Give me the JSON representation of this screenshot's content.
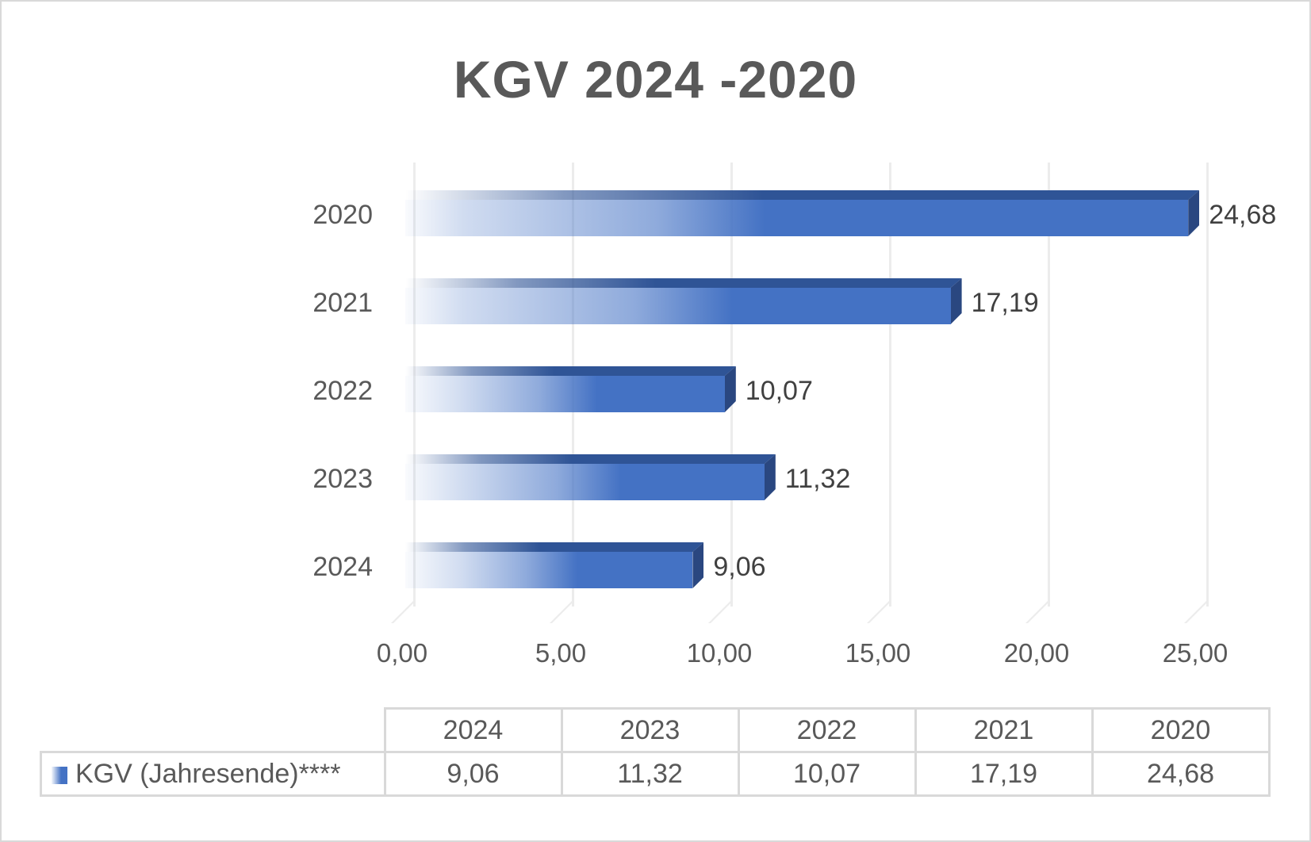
{
  "chart_data": {
    "type": "bar",
    "orientation": "horizontal",
    "style": "3d-gradient",
    "title": "KGV 2024 -2020",
    "categories": [
      "2020",
      "2021",
      "2022",
      "2023",
      "2024"
    ],
    "series": [
      {
        "name": "KGV (Jahresende)****",
        "values": [
          24.68,
          17.19,
          10.07,
          11.32,
          9.06
        ],
        "color": "#4472c4"
      }
    ],
    "data_labels": [
      "24,68",
      "17,19",
      "10,07",
      "11,32",
      "9,06"
    ],
    "xlabel": "",
    "ylabel": "",
    "xlim": [
      0,
      25
    ],
    "x_ticks": [
      "0,00",
      "5,00",
      "10,00",
      "15,00",
      "20,00",
      "25,00"
    ],
    "grid": true,
    "legend_position": "data-table",
    "data_table": {
      "header": [
        "2024",
        "2023",
        "2022",
        "2021",
        "2020"
      ],
      "row_label": "KGV (Jahresende)****",
      "row_values": [
        "9,06",
        "11,32",
        "10,07",
        "17,19",
        "24,68"
      ]
    }
  },
  "colors": {
    "bar": "#4472c4",
    "bar_top": "#2f5496",
    "bar_side": "#2a4780",
    "text": "#595959",
    "grid": "#ececec",
    "border": "#d9d9d9"
  }
}
